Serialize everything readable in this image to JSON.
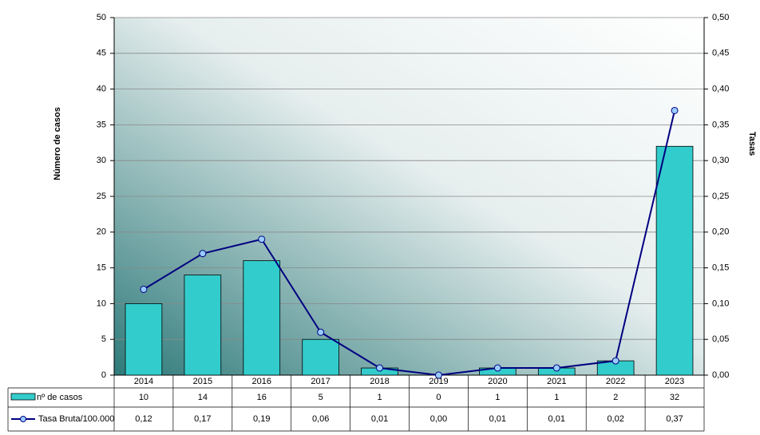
{
  "chart_data": {
    "type": "bar-line",
    "categories": [
      "2014",
      "2015",
      "2016",
      "2017",
      "2018",
      "2019",
      "2020",
      "2021",
      "2022",
      "2023"
    ],
    "series": [
      {
        "name": "nº de casos",
        "type": "bar",
        "color": "#33cccc",
        "values": [
          10,
          14,
          16,
          5,
          1,
          0,
          1,
          1,
          2,
          32
        ]
      },
      {
        "name": "Tasa Bruta/100.000",
        "type": "line",
        "axis": "y2",
        "color": "#000080",
        "values": [
          0.12,
          0.17,
          0.19,
          0.06,
          0.01,
          0.0,
          0.01,
          0.01,
          0.02,
          0.37
        ],
        "value_labels": [
          "0,12",
          "0,17",
          "0,19",
          "0,06",
          "0,01",
          "0,00",
          "0,01",
          "0,01",
          "0,02",
          "0,37"
        ]
      }
    ],
    "y_label": "Número de casos",
    "y2_label": "Tasas",
    "ylim": [
      0,
      50
    ],
    "yticks": [
      0,
      5,
      10,
      15,
      20,
      25,
      30,
      35,
      40,
      45,
      50
    ],
    "y2lim": [
      0,
      0.5
    ],
    "y2ticks": [
      {
        "value": 0,
        "label": "0,00"
      },
      {
        "value": 0.05,
        "label": "0,05"
      },
      {
        "value": 0.1,
        "label": "0,10"
      },
      {
        "value": 0.15,
        "label": "0,15"
      },
      {
        "value": 0.2,
        "label": "0,20"
      },
      {
        "value": 0.25,
        "label": "0,25"
      },
      {
        "value": 0.3,
        "label": "0,30"
      },
      {
        "value": 0.35,
        "label": "0,35"
      },
      {
        "value": 0.4,
        "label": "0,40"
      },
      {
        "value": 0.45,
        "label": "0,45"
      },
      {
        "value": 0.5,
        "label": "0,50"
      }
    ],
    "grid": true
  }
}
